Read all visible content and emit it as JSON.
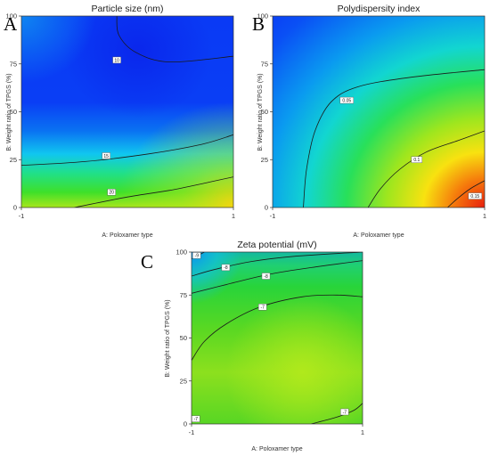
{
  "chart_data": [
    {
      "type": "heatmap",
      "panel_label": "A",
      "title": "Particle size (nm)",
      "xlabel": "A: Poloxamer type",
      "ylabel": "B: Weight ratio of TPGS (%)",
      "xlim": [
        -1,
        1
      ],
      "ylim": [
        0,
        100
      ],
      "x_ticks": [
        "-1",
        "1"
      ],
      "y_ticks": [
        "0",
        "25",
        "50",
        "75",
        "100"
      ],
      "colormap": [
        "#0a1ef5",
        "#0a8cf0",
        "#10d8f0",
        "#20e070",
        "#9be61f",
        "#f8e610",
        "#f58a0c",
        "#e81e0e"
      ],
      "contours": [
        {
          "label": "10",
          "points": [
            [
              -0.1,
              100
            ],
            [
              -0.08,
              90
            ],
            [
              0.08,
              81
            ],
            [
              0.4,
              76
            ],
            [
              1,
              79
            ]
          ],
          "label_at": [
            -0.1,
            77
          ]
        },
        {
          "label": "15",
          "points": [
            [
              -1,
              22
            ],
            [
              -0.4,
              24
            ],
            [
              0.2,
              28
            ],
            [
              0.7,
              33
            ],
            [
              1,
              38
            ]
          ],
          "label_at": [
            -0.2,
            27
          ]
        },
        {
          "label": "20",
          "points": [
            [
              -0.5,
              0
            ],
            [
              0,
              5.5
            ],
            [
              0.4,
              9
            ],
            [
              0.75,
              13
            ],
            [
              1,
              16
            ]
          ],
          "label_at": [
            -0.15,
            8
          ]
        }
      ]
    },
    {
      "type": "heatmap",
      "panel_label": "B",
      "title": "Polydispersity index",
      "xlabel": "A: Poloxamer type",
      "ylabel": "B: Weight ratio of TPGS (%)",
      "xlim": [
        -1,
        1
      ],
      "ylim": [
        0,
        100
      ],
      "x_ticks": [
        "-1",
        "1"
      ],
      "y_ticks": [
        "0",
        "25",
        "50",
        "75",
        "100"
      ],
      "colormap": [
        "#0a1ef5",
        "#0a8cf0",
        "#10d8f0",
        "#20e070",
        "#9be61f",
        "#f8e610",
        "#f58a0c",
        "#e81e0e"
      ],
      "contours": [
        {
          "label": "0.05",
          "points": [
            [
              -0.71,
              0
            ],
            [
              -0.68,
              20
            ],
            [
              -0.6,
              40
            ],
            [
              -0.45,
              55
            ],
            [
              -0.2,
              63
            ],
            [
              0.3,
              68
            ],
            [
              1,
              72
            ]
          ],
          "label_at": [
            -0.3,
            56
          ]
        },
        {
          "label": "0.1",
          "points": [
            [
              -0.1,
              0
            ],
            [
              0.02,
              10
            ],
            [
              0.2,
              20
            ],
            [
              0.45,
              29
            ],
            [
              0.75,
              35
            ],
            [
              1,
              40
            ]
          ],
          "label_at": [
            0.36,
            25
          ]
        },
        {
          "label": "0.15",
          "points": [
            [
              0.65,
              0
            ],
            [
              0.75,
              5
            ],
            [
              0.87,
              10
            ],
            [
              1,
              14
            ]
          ],
          "label_at": [
            0.91,
            6
          ]
        }
      ]
    },
    {
      "type": "heatmap",
      "panel_label": "C",
      "title": "Zeta potential (mV)",
      "xlabel": "A: Poloxamer type",
      "ylabel": "B: Weight ratio of TPGS (%)",
      "xlim": [
        -1,
        1
      ],
      "ylim": [
        0,
        100
      ],
      "x_ticks": [
        "-1",
        "1"
      ],
      "y_ticks": [
        "0",
        "25",
        "50",
        "75",
        "100"
      ],
      "colormap": [
        "#0a1ef5",
        "#0a8cf0",
        "#10d8f0",
        "#20e070",
        "#9be61f",
        "#f8e610",
        "#f58a0c",
        "#e81e0e"
      ],
      "contours": [
        {
          "label": "-9",
          "points": [
            [
              -1,
              96
            ],
            [
              -0.85,
              100
            ]
          ],
          "label_at": [
            -0.94,
            98
          ]
        },
        {
          "label": "-8",
          "points": [
            [
              -1,
              86
            ],
            [
              -0.72,
              90
            ],
            [
              -0.3,
              94.5
            ],
            [
              0.2,
              97.5
            ],
            [
              1,
              100
            ]
          ],
          "label_at": [
            -0.6,
            91
          ]
        },
        {
          "label": "-8",
          "points": [
            [
              -1,
              76
            ],
            [
              -0.6,
              81
            ],
            [
              -0.1,
              87
            ],
            [
              0.4,
              91
            ],
            [
              1,
              95
            ]
          ],
          "label_at": [
            -0.13,
            86
          ]
        },
        {
          "label": "-7",
          "points": [
            [
              -1,
              37
            ],
            [
              -0.85,
              48
            ],
            [
              -0.6,
              58
            ],
            [
              -0.2,
              68
            ],
            [
              0.3,
              74
            ],
            [
              0.7,
              75
            ],
            [
              1,
              74
            ]
          ],
          "label_at": [
            -0.17,
            68
          ]
        },
        {
          "label": "-7",
          "points": [
            [
              0.4,
              0
            ],
            [
              0.7,
              4
            ],
            [
              0.9,
              8
            ],
            [
              1,
              12
            ]
          ],
          "label_at": [
            0.79,
            7
          ]
        },
        {
          "label": "-7",
          "points": [],
          "label_at": [
            -0.95,
            3
          ]
        }
      ]
    }
  ]
}
